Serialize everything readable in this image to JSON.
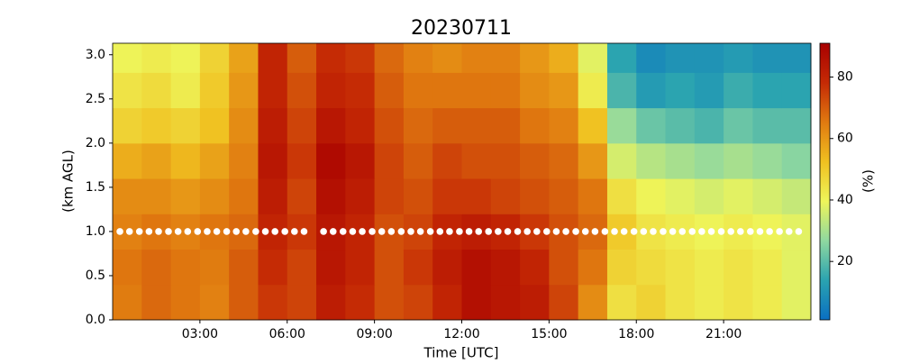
{
  "chart_data": {
    "type": "heatmap",
    "title": "20230711",
    "xlabel": "Time [UTC]",
    "ylabel": "(km AGL)",
    "colorbar_label": "(%)",
    "xbins": [
      0,
      1,
      2,
      3,
      4,
      5,
      6,
      7,
      8,
      9,
      10,
      11,
      12,
      13,
      14,
      15,
      16,
      17,
      18,
      19,
      20,
      21,
      22,
      23,
      24
    ],
    "ybins": [
      0,
      0.4,
      0.8,
      1.2,
      1.6,
      2.0,
      2.4,
      2.8,
      3.13
    ],
    "z": [
      [
        65,
        68,
        66,
        64,
        70,
        76,
        74,
        82,
        78,
        72,
        74,
        80,
        86,
        84,
        82,
        74,
        62,
        45,
        48,
        44,
        42,
        44,
        42,
        38
      ],
      [
        66,
        68,
        66,
        65,
        70,
        78,
        74,
        84,
        80,
        72,
        76,
        82,
        86,
        84,
        80,
        72,
        66,
        48,
        46,
        44,
        42,
        44,
        42,
        38
      ],
      [
        64,
        66,
        64,
        66,
        68,
        80,
        76,
        84,
        80,
        72,
        74,
        80,
        82,
        80,
        76,
        72,
        68,
        50,
        44,
        42,
        40,
        42,
        40,
        38
      ],
      [
        62,
        62,
        60,
        62,
        66,
        82,
        74,
        86,
        82,
        74,
        72,
        76,
        76,
        74,
        72,
        70,
        66,
        45,
        40,
        38,
        36,
        38,
        36,
        34
      ],
      [
        56,
        58,
        54,
        58,
        64,
        84,
        76,
        88,
        84,
        74,
        70,
        74,
        72,
        72,
        70,
        68,
        60,
        36,
        32,
        30,
        28,
        30,
        28,
        26
      ],
      [
        48,
        50,
        48,
        52,
        62,
        82,
        74,
        84,
        80,
        72,
        68,
        70,
        70,
        70,
        66,
        64,
        52,
        28,
        22,
        20,
        18,
        22,
        20,
        20
      ],
      [
        44,
        46,
        42,
        50,
        60,
        80,
        72,
        80,
        78,
        70,
        66,
        66,
        66,
        66,
        62,
        60,
        42,
        18,
        12,
        14,
        12,
        16,
        14,
        14
      ],
      [
        40,
        42,
        40,
        48,
        58,
        80,
        70,
        78,
        76,
        68,
        64,
        62,
        64,
        64,
        60,
        56,
        38,
        14,
        8,
        10,
        10,
        12,
        10,
        10
      ]
    ],
    "colormap": [
      "#0a6fc2",
      "#2aa3b0",
      "#8fd8a0",
      "#eef55a",
      "#f0c020",
      "#e07a10",
      "#c52a05",
      "#a80000"
    ],
    "zlim": [
      1,
      91
    ],
    "zticks": [
      20,
      40,
      60,
      80
    ],
    "xlim": [
      0,
      24
    ],
    "xticks": [
      {
        "value": 3,
        "label": "03:00"
      },
      {
        "value": 6,
        "label": "06:00"
      },
      {
        "value": 9,
        "label": "09:00"
      },
      {
        "value": 12,
        "label": "12:00"
      },
      {
        "value": 15,
        "label": "15:00"
      },
      {
        "value": 18,
        "label": "18:00"
      },
      {
        "value": 21,
        "label": "21:00"
      }
    ],
    "ylim": [
      0,
      3.13
    ],
    "yticks": [
      {
        "value": 0,
        "label": "0.0"
      },
      {
        "value": 0.5,
        "label": "0.5"
      },
      {
        "value": 1,
        "label": "1.0"
      },
      {
        "value": 1.5,
        "label": "1.5"
      },
      {
        "value": 2,
        "label": "2.0"
      },
      {
        "value": 2.5,
        "label": "2.5"
      },
      {
        "value": 3,
        "label": "3.0"
      }
    ],
    "markers": {
      "color": "#ffffff",
      "x": [
        0.25,
        0.58,
        0.92,
        1.25,
        1.58,
        1.92,
        2.25,
        2.58,
        2.92,
        3.25,
        3.58,
        3.92,
        4.25,
        4.58,
        4.92,
        5.25,
        5.58,
        5.92,
        6.25,
        6.58,
        7.25,
        7.58,
        7.92,
        8.25,
        8.58,
        8.92,
        9.25,
        9.58,
        9.92,
        10.25,
        10.58,
        10.92,
        11.25,
        11.58,
        11.92,
        12.25,
        12.58,
        12.92,
        13.25,
        13.58,
        13.92,
        14.25,
        14.58,
        14.92,
        15.25,
        15.58,
        15.92,
        16.25,
        16.58,
        16.92,
        17.25,
        17.58,
        17.92,
        18.25,
        18.58,
        18.92,
        19.25,
        19.58,
        19.92,
        20.25,
        20.58,
        20.92,
        21.25,
        21.58,
        21.92,
        22.25,
        22.58,
        22.92,
        23.25,
        23.58
      ],
      "y": [
        1,
        1,
        1,
        1,
        1,
        1,
        1,
        1,
        1,
        1,
        1,
        1,
        1,
        1,
        1,
        1,
        1,
        1,
        1,
        1,
        1,
        1,
        1,
        1,
        1,
        1,
        1,
        1,
        1,
        1,
        1,
        1,
        1,
        1,
        1,
        1,
        1,
        1,
        1,
        1,
        1,
        1,
        1,
        1,
        1,
        1,
        1,
        1,
        1,
        1,
        1,
        1,
        1,
        1,
        1,
        1,
        1,
        1,
        1,
        1,
        1,
        1,
        1,
        1,
        1,
        1,
        1,
        1,
        1,
        1
      ]
    }
  }
}
